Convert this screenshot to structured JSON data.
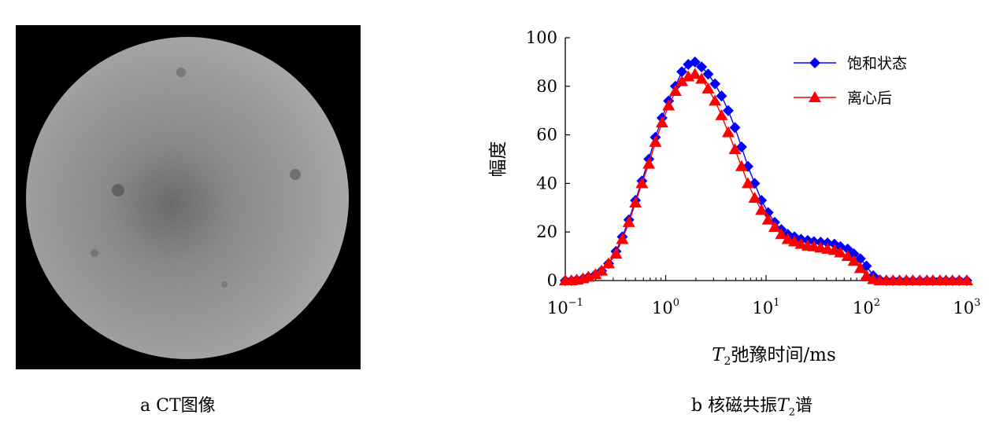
{
  "panel_a": {
    "caption": "a CT图像",
    "image_desc_icon": "ct-cross-section-image"
  },
  "panel_b": {
    "caption_prefix": "b 核磁共振",
    "caption_var": "T",
    "caption_sub": "2",
    "caption_suffix": "谱"
  },
  "chart_data": {
    "type": "line",
    "x_scale": "log",
    "xlim": [
      0.1,
      1000
    ],
    "ylim": [
      0,
      100
    ],
    "y_ticks": [
      0,
      20,
      40,
      60,
      80,
      100
    ],
    "x_ticks": [
      {
        "base": "10",
        "exp": "−1"
      },
      {
        "base": "10",
        "exp": "0"
      },
      {
        "base": "10",
        "exp": "1"
      },
      {
        "base": "10",
        "exp": "2"
      },
      {
        "base": "10",
        "exp": "3"
      }
    ],
    "xlabel_var": "T",
    "xlabel_sub": "2",
    "xlabel_text": "弛豫时间/ms",
    "ylabel": "幅度",
    "legend_position": "top-right",
    "series": [
      {
        "name": "饱和状态",
        "color": "#0000ff",
        "marker": "diamond",
        "x": [
          0.1,
          0.115,
          0.13,
          0.15,
          0.17,
          0.2,
          0.23,
          0.27,
          0.32,
          0.37,
          0.43,
          0.5,
          0.58,
          0.68,
          0.79,
          0.92,
          1.07,
          1.25,
          1.45,
          1.68,
          1.96,
          2.28,
          2.65,
          3.1,
          3.6,
          4.2,
          4.9,
          5.7,
          6.6,
          7.7,
          9,
          10.5,
          12.2,
          14.2,
          16.5,
          19.2,
          22.3,
          26,
          30,
          35,
          41,
          48,
          55,
          65,
          75,
          87,
          100,
          117,
          136,
          158,
          184,
          214,
          250,
          290,
          340,
          400,
          460,
          540,
          620,
          720,
          840,
          1000
        ],
        "y": [
          0,
          0,
          0.3,
          0.8,
          1.5,
          2.5,
          4,
          7,
          12,
          18,
          25,
          33,
          41,
          50,
          59,
          67,
          74,
          80,
          86,
          89,
          90,
          88,
          85,
          81,
          76,
          70,
          63,
          55,
          47,
          40,
          33,
          28,
          24,
          21,
          19,
          18,
          17,
          16.5,
          16,
          15.8,
          15.5,
          15,
          14,
          13,
          11,
          9,
          6,
          2,
          0.3,
          0,
          0,
          0,
          0,
          0,
          0,
          0,
          0,
          0,
          0,
          0,
          0,
          0
        ]
      },
      {
        "name": "离心后",
        "color": "#ff0000",
        "marker": "triangle",
        "x": [
          0.1,
          0.115,
          0.13,
          0.15,
          0.17,
          0.2,
          0.23,
          0.27,
          0.32,
          0.37,
          0.43,
          0.5,
          0.58,
          0.68,
          0.79,
          0.92,
          1.07,
          1.25,
          1.45,
          1.68,
          1.96,
          2.28,
          2.65,
          3.1,
          3.6,
          4.2,
          4.9,
          5.7,
          6.6,
          7.7,
          9,
          10.5,
          12.2,
          14.2,
          16.5,
          19.2,
          22.3,
          26,
          30,
          35,
          41,
          48,
          55,
          65,
          75,
          87,
          100,
          117,
          136,
          158,
          184,
          214,
          250,
          290,
          340,
          400,
          460,
          540,
          620,
          720,
          840,
          1000
        ],
        "y": [
          0,
          0,
          0.3,
          0.8,
          1.5,
          2.5,
          4,
          7,
          11,
          17,
          24,
          32,
          40,
          48,
          57,
          65,
          72,
          78,
          82,
          84,
          85,
          83,
          79,
          74,
          68,
          61,
          54,
          47,
          40,
          34,
          29,
          25,
          22,
          19,
          17,
          16,
          15,
          14.3,
          14,
          13.5,
          13,
          12.5,
          11.5,
          10,
          8,
          5,
          2,
          0.5,
          0,
          0,
          0,
          0,
          0,
          0,
          0,
          0,
          0,
          0,
          0,
          0,
          0,
          0
        ]
      }
    ]
  }
}
